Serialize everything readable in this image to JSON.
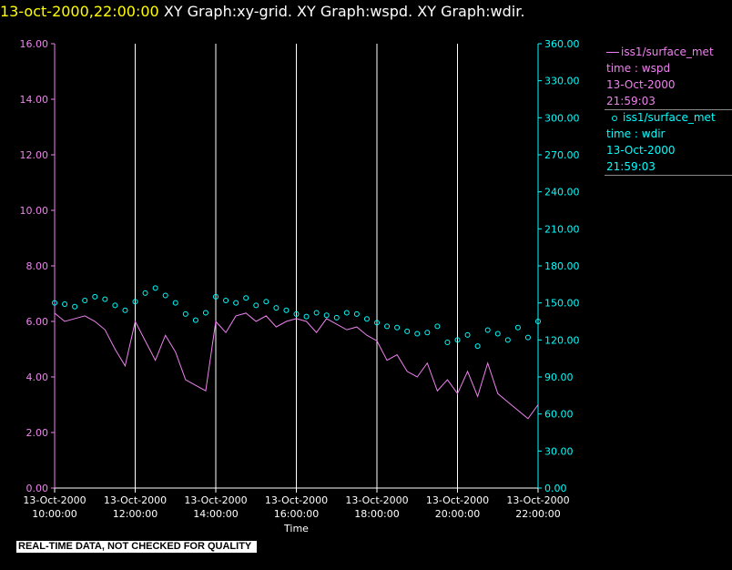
{
  "header": {
    "datetime": "13-oct-2000,22:00:00",
    "graphs": "XY Graph:xy-grid.  XY Graph:wspd.  XY Graph:wdir."
  },
  "footer_note": "REAL-TIME DATA, NOT CHECKED FOR QUALITY",
  "legend": {
    "wspd": {
      "series": "iss1/surface_met",
      "var": "time : wspd",
      "date": "13-Oct-2000",
      "time": "21:59:03",
      "color": "#ee82ee"
    },
    "wdir": {
      "series": "iss1/surface_met",
      "var": "time : wdir",
      "date": "13-Oct-2000",
      "time": "21:59:03",
      "color": "#00ffff"
    }
  },
  "chart_data": {
    "type": "line",
    "title": "",
    "xlabel": "Time",
    "x_range_hours": [
      10,
      22
    ],
    "x_ticks": [
      {
        "date": "13-Oct-2000",
        "time": "10:00:00"
      },
      {
        "date": "13-Oct-2000",
        "time": "12:00:00"
      },
      {
        "date": "13-Oct-2000",
        "time": "14:00:00"
      },
      {
        "date": "13-Oct-2000",
        "time": "16:00:00"
      },
      {
        "date": "13-Oct-2000",
        "time": "18:00:00"
      },
      {
        "date": "13-Oct-2000",
        "time": "20:00:00"
      },
      {
        "date": "13-Oct-2000",
        "time": "22:00:00"
      }
    ],
    "y_left": {
      "range": [
        0,
        16
      ],
      "ticks": [
        "0.00",
        "2.00",
        "4.00",
        "6.00",
        "8.00",
        "10.00",
        "12.00",
        "14.00",
        "16.00"
      ],
      "color": "#ee82ee"
    },
    "y_right": {
      "range": [
        0,
        360
      ],
      "ticks": [
        "0.00",
        "30.00",
        "60.00",
        "90.00",
        "120.00",
        "150.00",
        "180.00",
        "210.00",
        "240.00",
        "270.00",
        "300.00",
        "330.00",
        "360.00"
      ],
      "color": "#00ffff"
    },
    "grid": "vertical",
    "legend_position": "right",
    "series": [
      {
        "name": "iss1/surface_met time : wspd",
        "style": "line",
        "color": "#ee82ee",
        "x": [
          10.0,
          10.25,
          10.5,
          10.75,
          11.0,
          11.25,
          11.5,
          11.75,
          12.0,
          12.25,
          12.5,
          12.75,
          13.0,
          13.25,
          13.5,
          13.75,
          14.0,
          14.25,
          14.5,
          14.75,
          15.0,
          15.25,
          15.5,
          15.75,
          16.0,
          16.25,
          16.5,
          16.75,
          17.0,
          17.25,
          17.5,
          17.75,
          18.0,
          18.25,
          18.5,
          18.75,
          19.0,
          19.25,
          19.5,
          19.75,
          20.0,
          20.25,
          20.5,
          20.75,
          21.0,
          21.25,
          21.5,
          21.75,
          22.0
        ],
        "y": [
          6.3,
          6.0,
          6.1,
          6.2,
          6.0,
          5.7,
          5.0,
          4.4,
          6.0,
          5.3,
          4.6,
          5.5,
          4.9,
          3.9,
          3.7,
          3.5,
          6.0,
          5.6,
          6.2,
          6.3,
          6.0,
          6.2,
          5.8,
          6.0,
          6.1,
          6.0,
          5.6,
          6.1,
          5.9,
          5.7,
          5.8,
          5.5,
          5.3,
          4.6,
          4.8,
          4.2,
          4.0,
          4.5,
          3.5,
          3.9,
          3.4,
          4.2,
          3.3,
          4.5,
          3.4,
          3.1,
          2.8,
          2.5,
          3.0
        ]
      },
      {
        "name": "iss1/surface_met time : wdir",
        "style": "markers",
        "color": "#00ffff",
        "x": [
          10.0,
          10.25,
          10.5,
          10.75,
          11.0,
          11.25,
          11.5,
          11.75,
          12.0,
          12.25,
          12.5,
          12.75,
          13.0,
          13.25,
          13.5,
          13.75,
          14.0,
          14.25,
          14.5,
          14.75,
          15.0,
          15.25,
          15.5,
          15.75,
          16.0,
          16.25,
          16.5,
          16.75,
          17.0,
          17.25,
          17.5,
          17.75,
          18.0,
          18.25,
          18.5,
          18.75,
          19.0,
          19.25,
          19.5,
          19.75,
          20.0,
          20.25,
          20.5,
          20.75,
          21.0,
          21.25,
          21.5,
          21.75,
          22.0
        ],
        "y": [
          150,
          149,
          147,
          152,
          155,
          153,
          148,
          144,
          151,
          158,
          162,
          156,
          150,
          141,
          136,
          142,
          155,
          152,
          150,
          154,
          148,
          151,
          146,
          144,
          141,
          139,
          142,
          140,
          138,
          142,
          141,
          137,
          134,
          131,
          130,
          127,
          125,
          126,
          131,
          118,
          120,
          124,
          115,
          128,
          125,
          120,
          130,
          122,
          135
        ]
      }
    ]
  }
}
